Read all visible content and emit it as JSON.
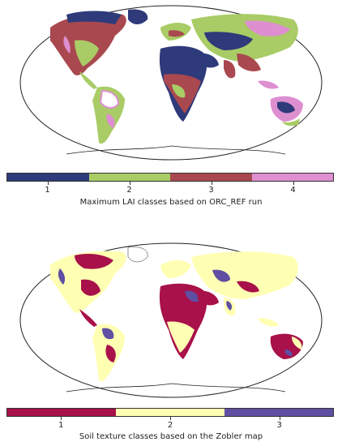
{
  "panels": [
    {
      "id": "lai",
      "classes": [
        {
          "label": "1",
          "color": "#2e3a7a"
        },
        {
          "label": "2",
          "color": "#a9cc66"
        },
        {
          "label": "3",
          "color": "#a9494f"
        },
        {
          "label": "4",
          "color": "#dd8fd0"
        }
      ],
      "colorbar_label": "Maximum LAI classes based on ORC_REF run"
    },
    {
      "id": "soil",
      "classes": [
        {
          "label": "1",
          "color": "#a8114a"
        },
        {
          "label": "2",
          "color": "#ffffb3"
        },
        {
          "label": "3",
          "color": "#5e4fa2"
        }
      ],
      "colorbar_label": "Soil texture classes based on the Zobler map"
    }
  ]
}
